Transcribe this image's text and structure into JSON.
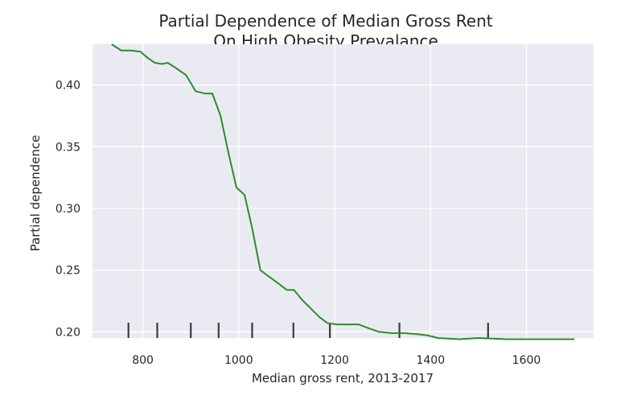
{
  "chart_data": {
    "type": "line",
    "title_lines": [
      "Partial Dependence of Median Gross Rent",
      "On High Obesity Prevalance"
    ],
    "xlabel": "Median gross rent, 2013-2017",
    "ylabel": "Partial dependence",
    "xlim": [
      695,
      1740
    ],
    "ylim": [
      0.195,
      0.433
    ],
    "xticks": [
      800,
      1000,
      1200,
      1400,
      1600
    ],
    "xtick_labels": [
      "800",
      "1000",
      "1200",
      "1400",
      "1600"
    ],
    "yticks": [
      0.2,
      0.25,
      0.3,
      0.35,
      0.4
    ],
    "ytick_labels": [
      "0.20",
      "0.25",
      "0.30",
      "0.35",
      "0.40"
    ],
    "grid": true,
    "background": "#eaeaf2",
    "line_color": "#2e8b2e",
    "rug_color": "#3b3b3b",
    "rug_deciles": [
      770,
      830,
      900,
      958,
      1028,
      1114,
      1190,
      1335,
      1520
    ],
    "series": [
      {
        "x": [
          735,
          755,
          775,
          795,
          810,
          825,
          840,
          852,
          868,
          890,
          910,
          930,
          945,
          962,
          978,
          995,
          1012,
          1028,
          1045,
          1062,
          1080,
          1100,
          1115,
          1132,
          1150,
          1168,
          1185,
          1205,
          1225,
          1250,
          1270,
          1292,
          1318,
          1345,
          1375,
          1395,
          1415,
          1460,
          1500,
          1560,
          1620,
          1680,
          1700
        ],
        "y": [
          0.433,
          0.428,
          0.428,
          0.427,
          0.422,
          0.418,
          0.417,
          0.418,
          0.414,
          0.408,
          0.395,
          0.393,
          0.393,
          0.375,
          0.346,
          0.317,
          0.311,
          0.284,
          0.25,
          0.245,
          0.24,
          0.234,
          0.234,
          0.226,
          0.219,
          0.212,
          0.207,
          0.206,
          0.206,
          0.206,
          0.203,
          0.2,
          0.199,
          0.199,
          0.198,
          0.197,
          0.195,
          0.194,
          0.195,
          0.194,
          0.194,
          0.194,
          0.194
        ]
      }
    ]
  }
}
